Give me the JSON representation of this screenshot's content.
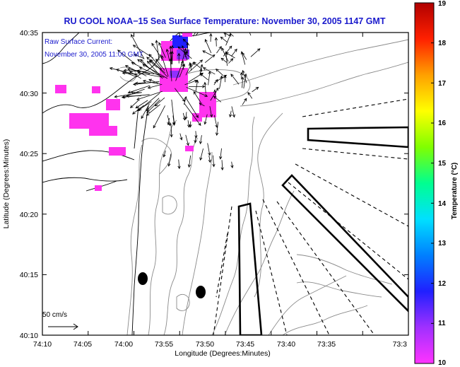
{
  "title": "RU COOL  NOAA−15  Sea Surface Temperature:  November 30, 2005 1147 GMT",
  "overlay": {
    "line1": "Raw Surface Current:",
    "line2": "November 30, 2005 11:00 GMT"
  },
  "x_axis": {
    "label": "Longitude (Degrees:Minutes)",
    "ticks": [
      "74:10",
      "74:05",
      "74:00",
      "73:55",
      "73:50",
      "73:45",
      "73:40",
      "73:35",
      "73:3"
    ]
  },
  "y_axis": {
    "label": "Latitude (Degrees:Minutes)",
    "ticks": [
      "40:35",
      "40:30",
      "40:25",
      "40:20",
      "40:15",
      "40:10"
    ]
  },
  "colorbar": {
    "label": "Temperature (°C)",
    "min": 10,
    "max": 19,
    "ticks": [
      "19",
      "18",
      "17",
      "16",
      "15",
      "14",
      "13",
      "12",
      "11",
      "10"
    ],
    "colors": [
      "#ff33ff",
      "#a030ff",
      "#2020ff",
      "#0080ff",
      "#00e0ff",
      "#00ff90",
      "#80ff00",
      "#ffff00",
      "#ffa000",
      "#ff2000",
      "#b00000"
    ]
  },
  "scale_label": "50 cm/s",
  "colors": {
    "title_blue": "#1a1acc",
    "sst_magenta": "#ff33ee",
    "sst_blue": "#2020ff",
    "sst_purple": "#9030ff",
    "land_line": "#000000",
    "contour": "#8a8a8a"
  }
}
